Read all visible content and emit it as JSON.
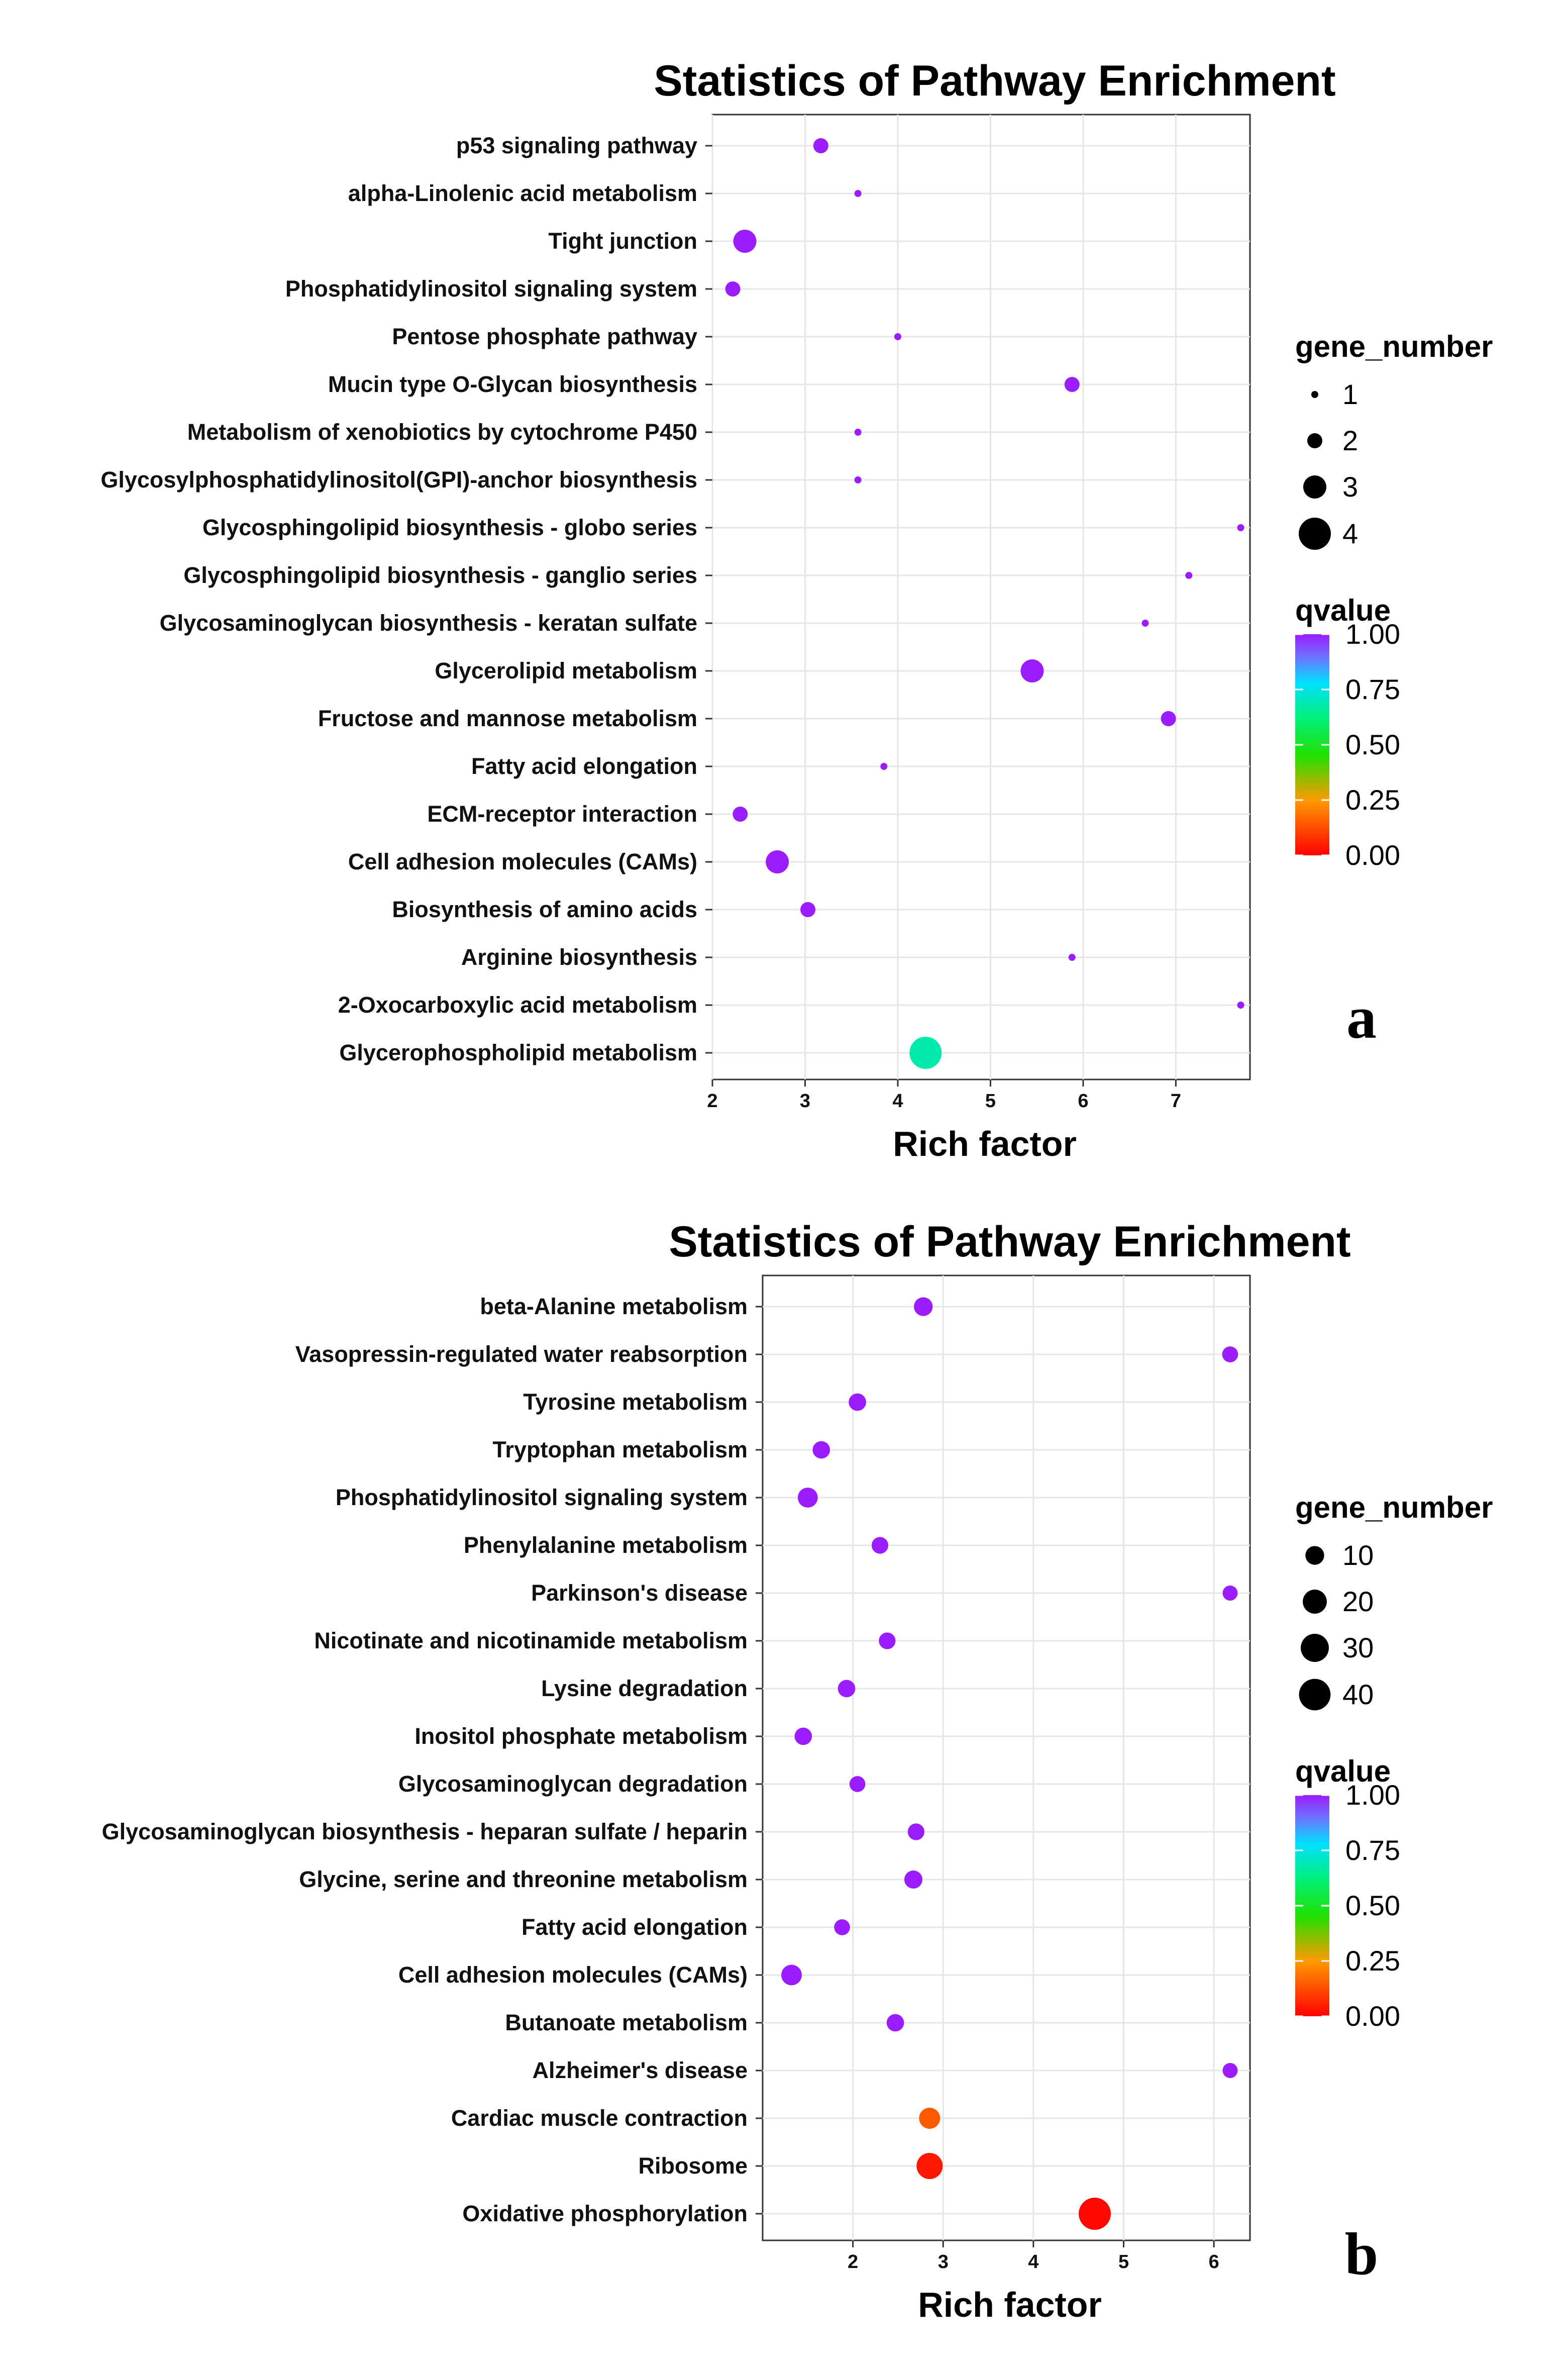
{
  "chart_data": [
    {
      "type": "scatter",
      "panel_label": "a",
      "title": "Statistics of Pathway Enrichment",
      "xlabel": "Rich factor",
      "xticks": [
        "2",
        "3",
        "4",
        "5",
        "6",
        "7"
      ],
      "xlim": [
        2,
        7.8
      ],
      "pathways": [
        "p53 signaling pathway",
        "alpha-Linolenic acid metabolism",
        "Tight junction",
        "Phosphatidylinositol signaling system",
        "Pentose phosphate pathway",
        "Mucin type O-Glycan biosynthesis",
        "Metabolism of xenobiotics by cytochrome P450",
        "Glycosylphosphatidylinositol(GPI)-anchor biosynthesis",
        "Glycosphingolipid biosynthesis - globo series",
        "Glycosphingolipid biosynthesis - ganglio series",
        "Glycosaminoglycan biosynthesis - keratan sulfate",
        "Glycerolipid metabolism",
        "Fructose and mannose metabolism",
        "Fatty acid elongation",
        "ECM-receptor interaction",
        "Cell adhesion molecules (CAMs)",
        "Biosynthesis of amino acids",
        "Arginine biosynthesis",
        "2-Oxocarboxylic acid metabolism",
        "Glycerophospholipid metabolism"
      ],
      "rich_factor": [
        3.17,
        3.57,
        2.35,
        2.22,
        4.0,
        5.88,
        3.57,
        3.57,
        7.7,
        7.14,
        6.67,
        5.45,
        6.92,
        3.85,
        2.3,
        2.7,
        3.03,
        5.88,
        7.7,
        4.3
      ],
      "gene_number": [
        2,
        1,
        3,
        2,
        1,
        2,
        1,
        1,
        1,
        1,
        1,
        3,
        2,
        1,
        2,
        3,
        2,
        1,
        1,
        4
      ],
      "qvalue": [
        1.0,
        1.0,
        1.0,
        1.0,
        1.0,
        1.0,
        1.0,
        1.0,
        1.0,
        1.0,
        1.0,
        1.0,
        1.0,
        1.0,
        1.0,
        1.0,
        1.0,
        1.0,
        1.0,
        0.68
      ],
      "size_legend": {
        "title": "gene_number",
        "values": [
          1,
          2,
          3,
          4
        ],
        "labels": [
          "1",
          "2",
          "3",
          "4"
        ]
      },
      "color_legend": {
        "title": "qvalue",
        "ticks": [
          "1.00",
          "0.75",
          "0.50",
          "0.25",
          "0.00"
        ],
        "stops": [
          1.0,
          0.75,
          0.5,
          0.25,
          0.0
        ]
      },
      "grid": true
    },
    {
      "type": "scatter",
      "panel_label": "b",
      "title": "Statistics of Pathway Enrichment",
      "xlabel": "Rich factor",
      "xticks": [
        "2",
        "3",
        "4",
        "5",
        "6"
      ],
      "xlim": [
        1.0,
        6.4
      ],
      "pathways": [
        "beta-Alanine metabolism",
        "Vasopressin-regulated water reabsorption",
        "Tyrosine metabolism",
        "Tryptophan metabolism",
        "Phosphatidylinositol signaling system",
        "Phenylalanine metabolism",
        "Parkinson's disease",
        "Nicotinate and nicotinamide metabolism",
        "Lysine degradation",
        "Inositol phosphate metabolism",
        "Glycosaminoglycan degradation",
        "Glycosaminoglycan biosynthesis - heparan sulfate / heparin",
        "Glycine, serine and threonine metabolism",
        "Fatty acid elongation",
        "Cell adhesion molecules (CAMs)",
        "Butanoate metabolism",
        "Alzheimer's disease",
        "Cardiac muscle contraction",
        "Ribosome",
        "Oxidative phosphorylation"
      ],
      "rich_factor": [
        2.78,
        6.18,
        2.05,
        1.65,
        1.5,
        2.3,
        6.18,
        2.38,
        1.93,
        1.45,
        2.05,
        2.7,
        2.67,
        1.88,
        1.32,
        2.47,
        6.18,
        2.85,
        2.85,
        4.68
      ],
      "gene_number": [
        10,
        6,
        8,
        8,
        12,
        7,
        5,
        7,
        8,
        8,
        6,
        7,
        9,
        6,
        13,
        8,
        5,
        14,
        25,
        42
      ],
      "qvalue": [
        1.0,
        1.0,
        1.0,
        1.0,
        1.0,
        1.0,
        1.0,
        1.0,
        1.0,
        1.0,
        1.0,
        1.0,
        1.0,
        1.0,
        1.0,
        1.0,
        1.0,
        0.12,
        0.03,
        0.01
      ],
      "size_legend": {
        "title": "gene_number",
        "values": [
          10,
          20,
          30,
          40
        ],
        "labels": [
          "10",
          "20",
          "30",
          "40"
        ]
      },
      "color_legend": {
        "title": "qvalue",
        "ticks": [
          "1.00",
          "0.75",
          "0.50",
          "0.25",
          "0.00"
        ],
        "stops": [
          1.0,
          0.75,
          0.5,
          0.25,
          0.0
        ]
      },
      "grid": true
    }
  ]
}
